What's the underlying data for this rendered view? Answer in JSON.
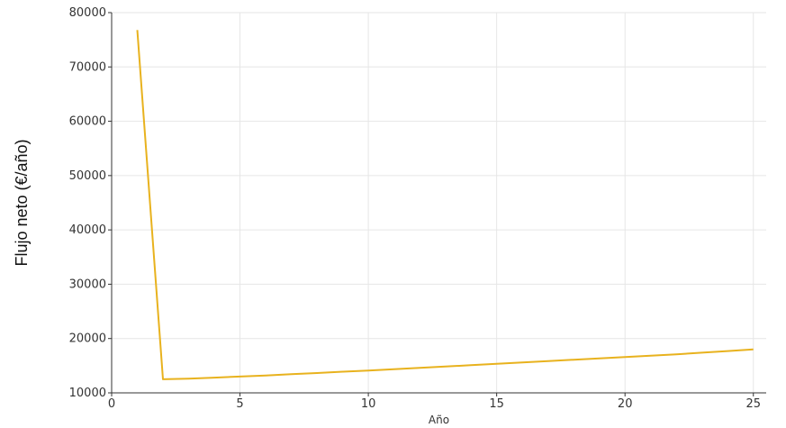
{
  "chart_data": {
    "type": "line",
    "title": "",
    "xlabel": "Año",
    "ylabel": "Flujo neto (€/año)",
    "xlim": [
      0,
      25.5
    ],
    "ylim": [
      10000,
      80000
    ],
    "x_ticks": [
      0,
      5,
      10,
      15,
      20,
      25
    ],
    "y_ticks": [
      10000,
      20000,
      30000,
      40000,
      50000,
      60000,
      70000,
      80000
    ],
    "grid": true,
    "series": [
      {
        "color": "#e8b21e",
        "x": [
          1,
          2,
          3,
          4,
          5,
          6,
          7,
          8,
          9,
          10,
          11,
          12,
          13,
          14,
          15,
          16,
          17,
          18,
          19,
          20,
          21,
          22,
          23,
          24,
          25
        ],
        "values": [
          76800,
          12500,
          12600,
          12800,
          13000,
          13200,
          13450,
          13650,
          13900,
          14100,
          14350,
          14600,
          14850,
          15100,
          15350,
          15600,
          15850,
          16100,
          16350,
          16600,
          16850,
          17100,
          17400,
          17700,
          18000
        ]
      }
    ]
  }
}
